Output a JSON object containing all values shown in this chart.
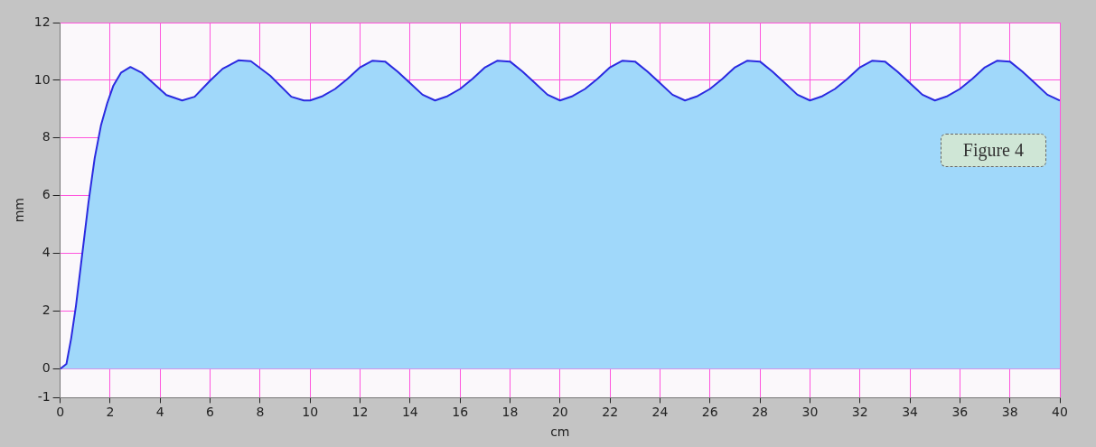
{
  "chart_data": {
    "type": "area",
    "xlabel": "cm",
    "ylabel": "mm",
    "annotations": [
      "Figure 4"
    ],
    "x": [
      0,
      0.25,
      0.44,
      0.63,
      0.88,
      1.13,
      1.38,
      1.63,
      1.88,
      2.13,
      2.44,
      2.81,
      3.25,
      3.75,
      4.25,
      4.88,
      5.38,
      6,
      6.5,
      7.13,
      7.63,
      8.4,
      9.25,
      9.75,
      10,
      10.5,
      11,
      11.5,
      12,
      12.5,
      13,
      13.5,
      14,
      14.5,
      15,
      15.5,
      16,
      16.5,
      17,
      17.5,
      18,
      18.5,
      19,
      19.5,
      20,
      20.5,
      21,
      21.5,
      22,
      22.5,
      23,
      23.5,
      24,
      24.5,
      25,
      25.5,
      26,
      26.5,
      27,
      27.5,
      28,
      28.5,
      29,
      29.5,
      30,
      30.5,
      31,
      31.5,
      32,
      32.5,
      33,
      33.5,
      34,
      34.5,
      35,
      35.5,
      36,
      36.5,
      37,
      37.5,
      38,
      38.5,
      39,
      39.5,
      40
    ],
    "series": [
      {
        "color": "#2a2ae0",
        "values": [
          0,
          0.17,
          1.06,
          2.18,
          3.96,
          5.75,
          7.3,
          8.43,
          9.2,
          9.82,
          10.27,
          10.46,
          10.27,
          9.88,
          9.49,
          9.3,
          9.43,
          9.99,
          10.4,
          10.69,
          10.66,
          10.16,
          9.43,
          9.3,
          9.3,
          9.45,
          9.7,
          10.05,
          10.45,
          10.68,
          10.65,
          10.3,
          9.9,
          9.5,
          9.3,
          9.45,
          9.7,
          10.05,
          10.45,
          10.68,
          10.65,
          10.3,
          9.9,
          9.5,
          9.3,
          9.45,
          9.7,
          10.05,
          10.45,
          10.68,
          10.65,
          10.3,
          9.9,
          9.5,
          9.3,
          9.45,
          9.7,
          10.05,
          10.45,
          10.68,
          10.65,
          10.3,
          9.9,
          9.5,
          9.3,
          9.45,
          9.7,
          10.05,
          10.45,
          10.68,
          10.65,
          10.3,
          9.9,
          9.5,
          9.3,
          9.45,
          9.7,
          10.05,
          10.45,
          10.68,
          10.65,
          10.3,
          9.9,
          9.5,
          9.3
        ]
      }
    ],
    "xlim": [
      0,
      40
    ],
    "xticks": [
      0,
      2,
      4,
      6,
      8,
      10,
      12,
      14,
      16,
      18,
      20,
      22,
      24,
      26,
      28,
      30,
      32,
      34,
      36,
      38,
      40
    ],
    "ylim": [
      -1,
      12
    ],
    "yticks": [
      -1,
      0,
      2,
      4,
      6,
      8,
      10,
      12
    ],
    "grid": true,
    "legend": false,
    "marker": "none",
    "line_style": "solid"
  }
}
